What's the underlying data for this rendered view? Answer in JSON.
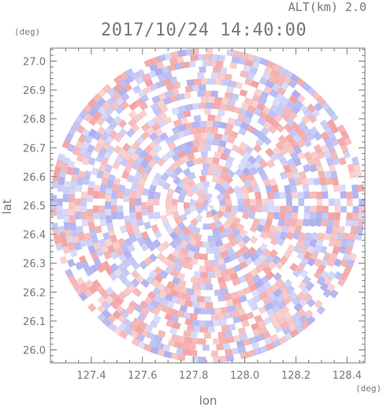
{
  "header": {
    "altitude_label": "ALT(km) 2.0",
    "datetime": "2017/10/24 14:40:00"
  },
  "colors": {
    "positive": "#f2a3a3",
    "negative": "#a9acef",
    "neutral": "#ffffff",
    "axis": "#777777"
  },
  "chart_data": {
    "type": "heatmap",
    "title": "2017/10/24 14:40:00",
    "subtitle": "ALT(km) 2.0",
    "xlabel": "lon",
    "ylabel": "lat",
    "x_unit": "(deg)",
    "y_unit": "(deg)",
    "xlim": [
      127.24,
      128.47
    ],
    "ylim": [
      25.955,
      27.045
    ],
    "x_ticks": [
      "127.4",
      "127.6",
      "127.8",
      "128.0",
      "128.2",
      "128.4"
    ],
    "y_ticks": [
      "26.0",
      "26.1",
      "26.2",
      "26.3",
      "26.4",
      "26.5",
      "26.6",
      "26.7",
      "26.8",
      "26.9",
      "27.0"
    ],
    "center": {
      "lon": 127.855,
      "lat": 26.5
    },
    "radius_deg_lat": 0.545,
    "grid": false,
    "legend": "none",
    "field_description": "circular radar scan, alternating positive (red) and negative (blue) velocity patches"
  }
}
